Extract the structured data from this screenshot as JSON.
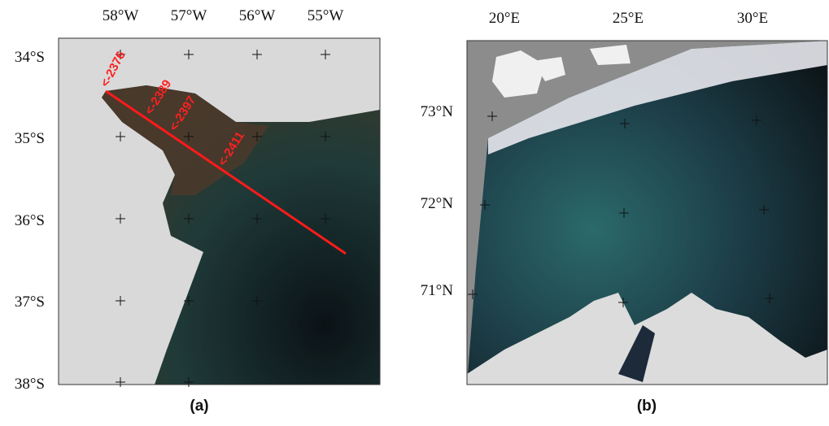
{
  "panels": [
    {
      "caption": "(a)",
      "lon_labels": [
        "58°W",
        "57°W",
        "56°W",
        "55°W"
      ],
      "lat_labels": [
        "34°S",
        "35°S",
        "36°S",
        "37°S",
        "38°S"
      ],
      "annotations": [
        "<-2376",
        "<-2389",
        "<-2397",
        "<-2411"
      ]
    },
    {
      "caption": "(b)",
      "lon_labels": [
        "20°E",
        "25°E",
        "30°E"
      ],
      "lat_labels": [
        "73°N",
        "72°N",
        "71°N"
      ]
    }
  ]
}
